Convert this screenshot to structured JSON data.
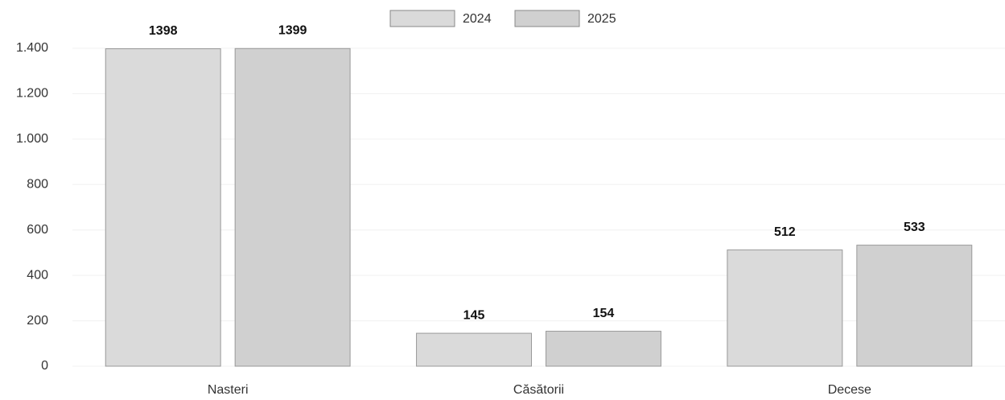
{
  "chart_data": {
    "type": "bar",
    "categories": [
      "Nasteri",
      "Căsătorii",
      "Decese"
    ],
    "series": [
      {
        "name": "2024",
        "color": "#dadada",
        "values": [
          1398,
          145,
          512
        ]
      },
      {
        "name": "2025",
        "color": "#d0d0d0",
        "values": [
          1399,
          154,
          533
        ]
      }
    ],
    "ylim": [
      0,
      1400
    ],
    "yticks": [
      0,
      200,
      400,
      600,
      800,
      {
        "value": 1000,
        "label": "1.000"
      },
      {
        "value": 1200,
        "label": "1.200"
      },
      {
        "value": 1400,
        "label": "1.400"
      }
    ],
    "grid": true
  }
}
